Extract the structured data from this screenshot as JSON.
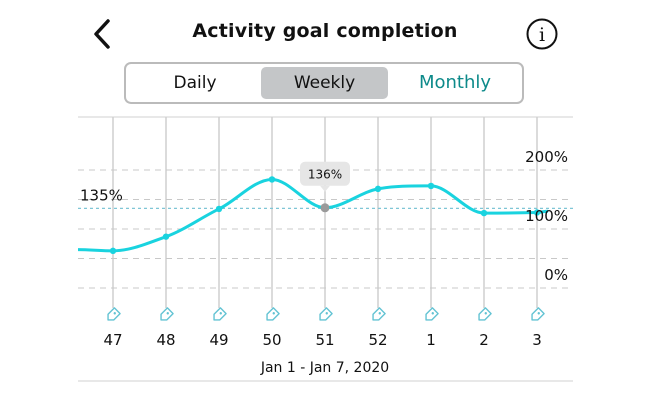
{
  "header": {
    "title": "Activity goal completion",
    "back_icon": "chevron-left-icon",
    "info_icon": "info-icon",
    "info_glyph": "i"
  },
  "tabs": [
    {
      "label": "Daily",
      "selected": false
    },
    {
      "label": "Weekly",
      "selected": true
    },
    {
      "label": "Monthly",
      "selected": false
    }
  ],
  "colors": {
    "line": "#19d3df",
    "goal_line": "#7fc6d6",
    "selected_point": "#9a9a9a",
    "monthly_text": "#0d8a8a",
    "tag_icon": "#63c3d3"
  },
  "chart_data": {
    "type": "line",
    "x": [
      "47",
      "48",
      "49",
      "50",
      "51",
      "52",
      "1",
      "2",
      "3"
    ],
    "series": [
      {
        "values": [
          63,
          87,
          134,
          184,
          136,
          168,
          173,
          127,
          128
        ]
      }
    ],
    "ylim": [
      0,
      200
    ],
    "y_ticks": [
      "200%",
      "100%",
      "0%"
    ],
    "goal_label": "135%",
    "goal_value": 135,
    "selected_index": 4,
    "selected_label": "136%",
    "period_label": "Jan 1 - Jan 7, 2020",
    "grid": true
  }
}
